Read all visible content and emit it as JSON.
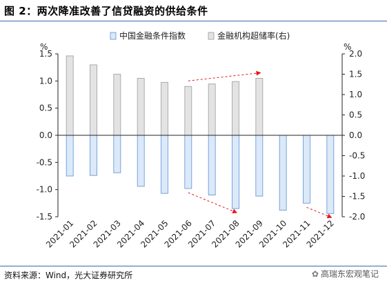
{
  "title": "图 2：两次降准改善了信贷融资的供给条件",
  "source": "资料来源：Wind，光大证券研究所",
  "watermark": {
    "icon": "wechat-icon",
    "text": "高瑞东宏观笔记"
  },
  "colors": {
    "index_fill": "#dbe9f8",
    "index_stroke": "#5b8fd6",
    "ratio_fill": "#e3e3e3",
    "ratio_stroke": "#9a9a9a",
    "arrow": "#e8141b",
    "title_rule": "#3a66a8"
  },
  "chart_data": {
    "type": "bar",
    "categories": [
      "2021-01",
      "2021-02",
      "2021-03",
      "2021-04",
      "2021-05",
      "2021-06",
      "2021-07",
      "2021-08",
      "2021-09",
      "2021-10",
      "2021-11",
      "2021-12"
    ],
    "series": [
      {
        "name": "中国金融条件指数",
        "axis": "left",
        "values": [
          -0.75,
          -0.74,
          -0.69,
          -0.94,
          -1.07,
          -0.98,
          -1.1,
          -1.35,
          -1.12,
          -1.38,
          -1.25,
          -1.44
        ]
      },
      {
        "name": "金融机构超储率(右)",
        "axis": "right",
        "values": [
          1.95,
          1.73,
          1.5,
          1.4,
          1.3,
          1.2,
          1.26,
          1.32,
          1.4,
          null,
          null,
          null
        ]
      }
    ],
    "left_axis": {
      "unit": "%",
      "ylim": [
        -1.5,
        1.5
      ],
      "ticks": [
        "1.5",
        "1.0",
        "0.5",
        "0.0",
        "-0.5",
        "-1.0",
        "-1.5"
      ]
    },
    "right_axis": {
      "unit": "%",
      "ylim": [
        -2.0,
        2.0
      ],
      "ticks": [
        "2.0",
        "1.5",
        "1.0",
        "0.5",
        "0.0",
        "-0.5",
        "-1.0",
        "-1.5",
        "-2.0"
      ]
    },
    "legend_position": "top",
    "grid": false,
    "annotations": [
      {
        "kind": "arrow",
        "style": "dashed",
        "series": "金融机构超储率(右)",
        "from": "2021-06",
        "to": "2021-09"
      },
      {
        "kind": "arrow",
        "style": "dashed",
        "series": "中国金融条件指数",
        "from": "2021-06",
        "to": "2021-08"
      },
      {
        "kind": "arrow",
        "style": "dashed",
        "series": "中国金融条件指数",
        "from": "2021-11",
        "to": "2021-12"
      }
    ]
  }
}
